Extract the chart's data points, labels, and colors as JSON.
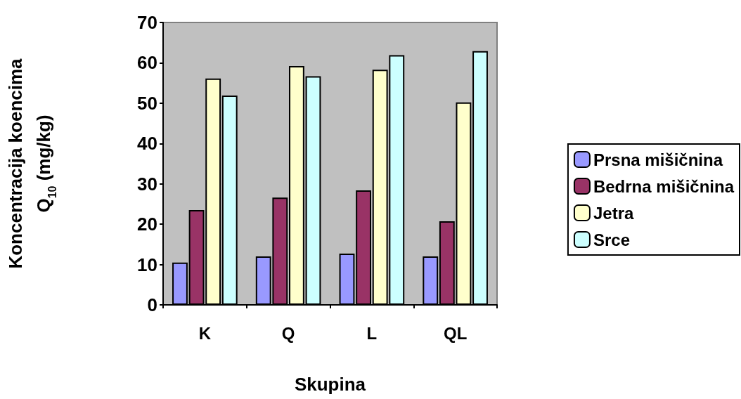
{
  "chart_data": {
    "type": "bar",
    "xlabel": "Skupina",
    "ylabel": "Koncentracija koencima\nQ$_{10}$ (mg/kg)",
    "categories": [
      "K",
      "Q",
      "L",
      "QL"
    ],
    "series": [
      {
        "name": "Prsna mišičnina",
        "color": "#9999ff",
        "values": [
          10.5,
          12.0,
          12.7,
          12.0
        ]
      },
      {
        "name": "Bedrna mišičnina",
        "color": "#993366",
        "values": [
          23.5,
          26.6,
          28.4,
          20.7
        ]
      },
      {
        "name": "Jetra",
        "color": "#ffffcc",
        "values": [
          56.1,
          59.2,
          58.3,
          50.2
        ]
      },
      {
        "name": "Srce",
        "color": "#ccffff",
        "values": [
          51.9,
          56.7,
          61.9,
          62.9
        ]
      }
    ],
    "ylim": [
      0,
      70
    ],
    "yticks": [
      0,
      10,
      20,
      30,
      40,
      50,
      60,
      70
    ],
    "grid": false,
    "legend": "right"
  }
}
